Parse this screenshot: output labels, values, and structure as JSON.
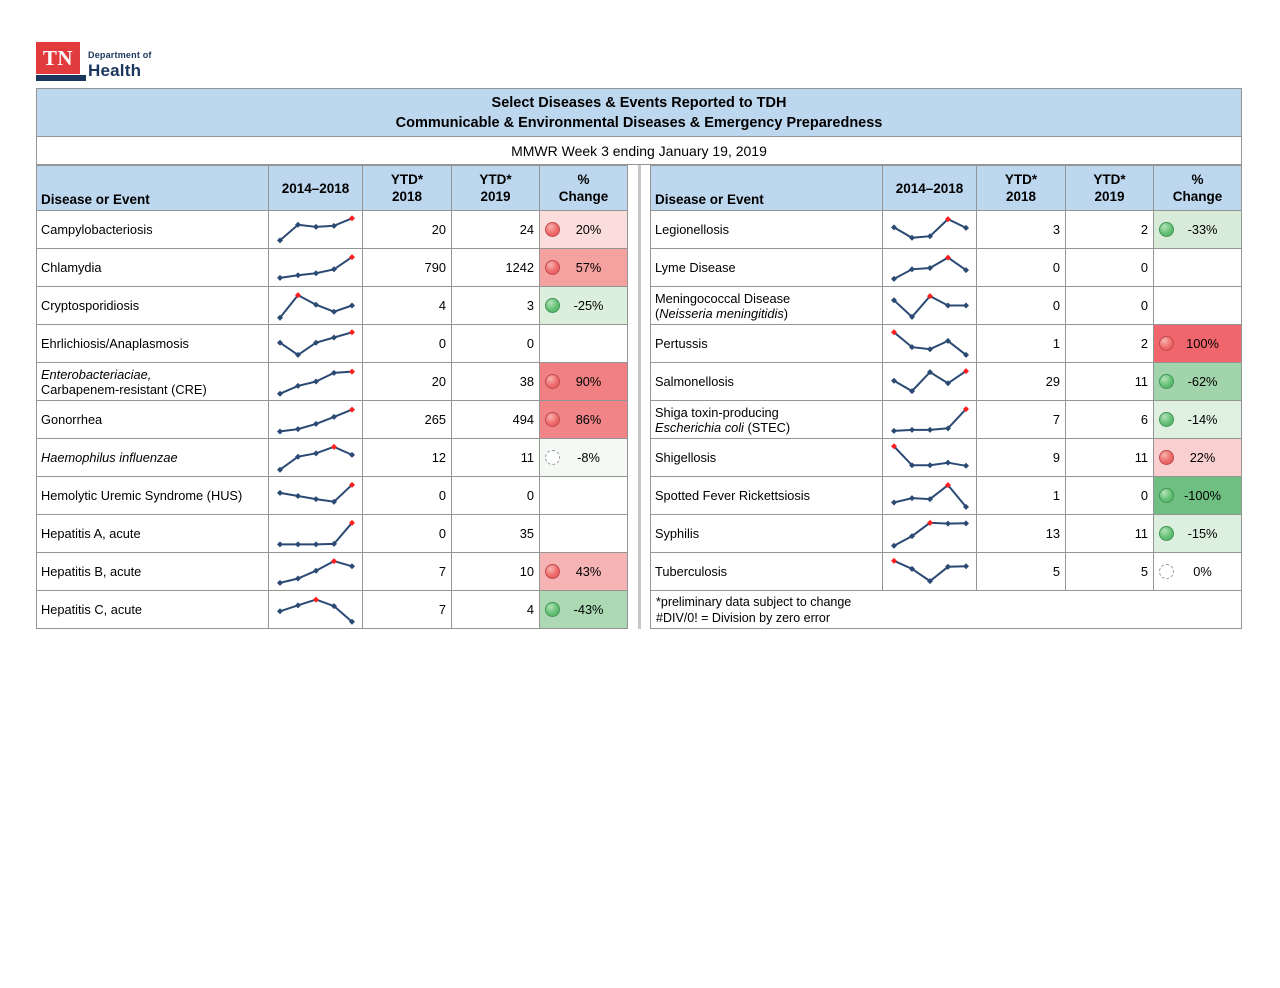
{
  "logo": {
    "tn": "TN",
    "department": "Department of",
    "health": "Health"
  },
  "header": {
    "title_line1": "Select Diseases & Events Reported to TDH",
    "title_line2": "Communicable & Environmental Diseases & Emergency Preparedness",
    "subtitle": "MMWR Week 3 ending January 19, 2019"
  },
  "columns": {
    "disease": "Disease or Event",
    "trend": "2014–2018",
    "ytd2018": "YTD*\n2018",
    "ytd2019": "YTD*\n2019",
    "pct": "%\nChange"
  },
  "footnotes": {
    "line1": "*preliminary data subject to change",
    "line2": "#DIV/0! = Division by zero error"
  },
  "colors": {
    "header_blue": "#bdd7ee",
    "border_gray": "#949494",
    "sparkline_navy": "#2b4a73",
    "sparkline_highpoint_red": "#ff1f1f",
    "icon_red": "#e05356",
    "icon_green": "#4dac61",
    "icon_neutral": "#ffffff"
  },
  "tables": {
    "left": [
      {
        "name_lines": [
          [
            {
              "text": "Campylobacteriosis",
              "italic": false
            }
          ]
        ],
        "trend": {
          "values": [
            0.1,
            0.7,
            0.62,
            0.66,
            0.95
          ],
          "red_index": 4
        },
        "ytd_2018": "20",
        "ytd_2019": "24",
        "pct_change": "20%",
        "icon": "red",
        "pct_bg": "#fbdddb"
      },
      {
        "name_lines": [
          [
            {
              "text": "Chlamydia",
              "italic": false
            }
          ]
        ],
        "trend": {
          "values": [
            0.12,
            0.22,
            0.3,
            0.45,
            0.92
          ],
          "red_index": 4
        },
        "ytd_2018": "790",
        "ytd_2019": "1242",
        "pct_change": "57%",
        "icon": "red",
        "pct_bg": "#f5a1a0"
      },
      {
        "name_lines": [
          [
            {
              "text": "Cryptosporidiosis",
              "italic": false
            }
          ]
        ],
        "trend": {
          "values": [
            0.05,
            0.92,
            0.55,
            0.28,
            0.52
          ],
          "red_index": 1
        },
        "ytd_2018": "4",
        "ytd_2019": "3",
        "pct_change": "-25%",
        "icon": "green",
        "pct_bg": "#dceedc"
      },
      {
        "name_lines": [
          [
            {
              "text": "Ehrlichiosis/Anaplasmosis",
              "italic": false
            }
          ]
        ],
        "trend": {
          "values": [
            0.55,
            0.08,
            0.55,
            0.75,
            0.95
          ],
          "red_index": 4
        },
        "ytd_2018": "0",
        "ytd_2019": "0",
        "pct_change": "",
        "icon": null,
        "pct_bg": ""
      },
      {
        "name_lines": [
          [
            {
              "text": "Enterobacteriaciae,",
              "italic": true
            }
          ],
          [
            {
              "text": "Carbapenem-resistant (CRE)",
              "italic": false
            }
          ]
        ],
        "trend": {
          "values": [
            0.05,
            0.35,
            0.52,
            0.85,
            0.9
          ],
          "red_index": 4
        },
        "ytd_2018": "20",
        "ytd_2019": "38",
        "pct_change": "90%",
        "icon": "red",
        "pct_bg": "#f08082"
      },
      {
        "name_lines": [
          [
            {
              "text": "Gonorrhea",
              "italic": false
            }
          ]
        ],
        "trend": {
          "values": [
            0.06,
            0.15,
            0.35,
            0.62,
            0.9
          ],
          "red_index": 4
        },
        "ytd_2018": "265",
        "ytd_2019": "494",
        "pct_change": "86%",
        "icon": "red",
        "pct_bg": "#f08486"
      },
      {
        "name_lines": [
          [
            {
              "text": "Haemophilus influenzae",
              "italic": true
            }
          ]
        ],
        "trend": {
          "values": [
            0.05,
            0.55,
            0.68,
            0.93,
            0.62
          ],
          "red_index": 3
        },
        "ytd_2018": "12",
        "ytd_2019": "11",
        "pct_change": "-8%",
        "icon": "white",
        "pct_bg": "#f4f9f3"
      },
      {
        "name_lines": [
          [
            {
              "text": "Hemolytic Uremic Syndrome (HUS)",
              "italic": false
            }
          ]
        ],
        "trend": {
          "values": [
            0.62,
            0.5,
            0.38,
            0.28,
            0.93
          ],
          "red_index": 4
        },
        "ytd_2018": "0",
        "ytd_2019": "0",
        "pct_change": "",
        "icon": null,
        "pct_bg": ""
      },
      {
        "name_lines": [
          [
            {
              "text": "Hepatitis A, acute",
              "italic": false
            }
          ]
        ],
        "trend": {
          "values": [
            0.1,
            0.1,
            0.1,
            0.12,
            0.93
          ],
          "red_index": 4
        },
        "ytd_2018": "0",
        "ytd_2019": "35",
        "pct_change": "",
        "icon": null,
        "pct_bg": ""
      },
      {
        "name_lines": [
          [
            {
              "text": "Hepatitis B, acute",
              "italic": false
            }
          ]
        ],
        "trend": {
          "values": [
            0.08,
            0.25,
            0.55,
            0.92,
            0.72
          ],
          "red_index": 3
        },
        "ytd_2018": "7",
        "ytd_2019": "10",
        "pct_change": "43%",
        "icon": "red",
        "pct_bg": "#f6b3b4"
      },
      {
        "name_lines": [
          [
            {
              "text": "Hepatitis C, acute",
              "italic": false
            }
          ]
        ],
        "trend": {
          "values": [
            0.45,
            0.68,
            0.9,
            0.65,
            0.05
          ],
          "red_index": 2
        },
        "ytd_2018": "7",
        "ytd_2019": "4",
        "pct_change": "-43%",
        "icon": "green",
        "pct_bg": "#acd9b4"
      }
    ],
    "right": [
      {
        "name_lines": [
          [
            {
              "text": "Legionellosis",
              "italic": false
            }
          ]
        ],
        "trend": {
          "values": [
            0.6,
            0.2,
            0.26,
            0.92,
            0.58
          ],
          "red_index": 3
        },
        "ytd_2018": "3",
        "ytd_2019": "2",
        "pct_change": "-33%",
        "icon": "green",
        "pct_bg": "#d7ebd8"
      },
      {
        "name_lines": [
          [
            {
              "text": "Lyme Disease",
              "italic": false
            }
          ]
        ],
        "trend": {
          "values": [
            0.08,
            0.45,
            0.5,
            0.9,
            0.42
          ],
          "red_index": 3
        },
        "ytd_2018": "0",
        "ytd_2019": "0",
        "pct_change": "",
        "icon": null,
        "pct_bg": ""
      },
      {
        "name_lines": [
          [
            {
              "text": "Meningococcal Disease",
              "italic": false
            }
          ],
          [
            {
              "text": "(",
              "italic": false
            },
            {
              "text": "Neisseria meningitidis",
              "italic": true
            },
            {
              "text": ")",
              "italic": false
            }
          ]
        ],
        "trend": {
          "values": [
            0.72,
            0.08,
            0.88,
            0.52,
            0.52
          ],
          "red_index": 2
        },
        "ytd_2018": "0",
        "ytd_2019": "0",
        "pct_change": "",
        "icon": null,
        "pct_bg": ""
      },
      {
        "name_lines": [
          [
            {
              "text": "Pertussis",
              "italic": false
            }
          ]
        ],
        "trend": {
          "values": [
            0.95,
            0.38,
            0.3,
            0.62,
            0.08
          ],
          "red_index": 0
        },
        "ytd_2018": "1",
        "ytd_2019": "2",
        "pct_change": "100%",
        "icon": "red",
        "pct_bg": "#f1666c"
      },
      {
        "name_lines": [
          [
            {
              "text": "Salmonellosis",
              "italic": false
            }
          ]
        ],
        "trend": {
          "values": [
            0.55,
            0.15,
            0.88,
            0.45,
            0.92
          ],
          "red_index": 4
        },
        "ytd_2018": "29",
        "ytd_2019": "11",
        "pct_change": "-62%",
        "icon": "green",
        "pct_bg": "#a2d4ab"
      },
      {
        "name_lines": [
          [
            {
              "text": "Shiga toxin-producing",
              "italic": false
            }
          ],
          [
            {
              "text": "Escherichia coli",
              "italic": true
            },
            {
              "text": " (STEC)",
              "italic": false
            }
          ]
        ],
        "trend": {
          "values": [
            0.08,
            0.12,
            0.12,
            0.18,
            0.92
          ],
          "red_index": 4
        },
        "ytd_2018": "7",
        "ytd_2019": "6",
        "pct_change": "-14%",
        "icon": "green",
        "pct_bg": "#dff0e0"
      },
      {
        "name_lines": [
          [
            {
              "text": "Shigellosis",
              "italic": false
            }
          ]
        ],
        "trend": {
          "values": [
            0.95,
            0.22,
            0.22,
            0.32,
            0.2
          ],
          "red_index": 0
        },
        "ytd_2018": "9",
        "ytd_2019": "11",
        "pct_change": "22%",
        "icon": "red",
        "pct_bg": "#f9d0cf"
      },
      {
        "name_lines": [
          [
            {
              "text": "Spotted Fever Rickettsiosis",
              "italic": false
            }
          ]
        ],
        "trend": {
          "values": [
            0.25,
            0.42,
            0.38,
            0.92,
            0.08
          ],
          "red_index": 3
        },
        "ytd_2018": "1",
        "ytd_2019": "0",
        "pct_change": "-100%",
        "icon": "green",
        "pct_bg": "#6fbe82"
      },
      {
        "name_lines": [
          [
            {
              "text": "Syphilis",
              "italic": false
            }
          ]
        ],
        "trend": {
          "values": [
            0.05,
            0.42,
            0.93,
            0.9,
            0.91
          ],
          "red_index": 2
        },
        "ytd_2018": "13",
        "ytd_2019": "11",
        "pct_change": "-15%",
        "icon": "green",
        "pct_bg": "#ddefdf"
      },
      {
        "name_lines": [
          [
            {
              "text": "Tuberculosis",
              "italic": false
            }
          ]
        ],
        "trend": {
          "values": [
            0.93,
            0.62,
            0.15,
            0.7,
            0.72
          ],
          "red_index": 0
        },
        "ytd_2018": "5",
        "ytd_2019": "5",
        "pct_change": "0%",
        "icon": "white",
        "pct_bg": "#ffffff"
      }
    ]
  }
}
